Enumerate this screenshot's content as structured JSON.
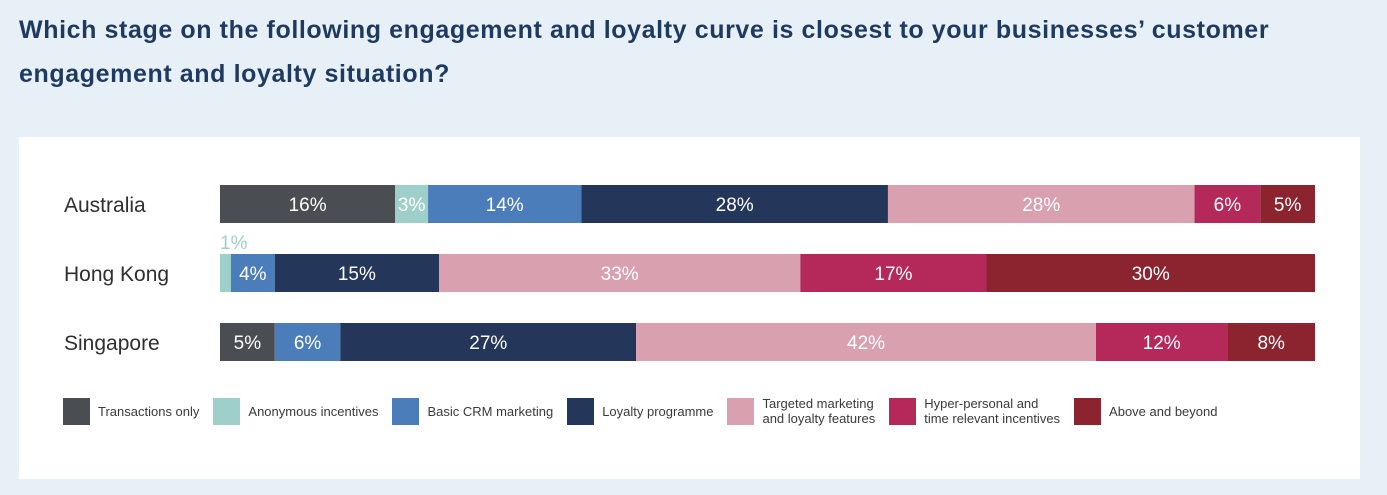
{
  "heading": "Which stage on the following engagement and loyalty curve is closest to your businesses’ customer engagement and loyalty situation?",
  "colors": {
    "transactions": "#4a4d51",
    "anonymous": "#9fcfca",
    "basic_crm": "#4a7db9",
    "loyalty": "#243659",
    "targeted": "#d9a0b0",
    "hyper": "#b5295a",
    "above": "#8c2430",
    "label_on_dark": "#ffffff",
    "label_outside": "#9fcfca",
    "country_text": "#2f2f2f",
    "heading_text": "#1f3a5f"
  },
  "legend": [
    {
      "key": "transactions",
      "label": "Transactions only"
    },
    {
      "key": "anonymous",
      "label": "Anonymous incentives"
    },
    {
      "key": "basic_crm",
      "label": "Basic CRM marketing"
    },
    {
      "key": "loyalty",
      "label": "Loyalty programme"
    },
    {
      "key": "targeted",
      "label": "Targeted marketing\nand loyalty features"
    },
    {
      "key": "hyper",
      "label": "Hyper-personal and\ntime relevant incentives"
    },
    {
      "key": "above",
      "label": "Above and beyond"
    }
  ],
  "chart_data": {
    "type": "bar",
    "orientation": "horizontal",
    "stacked": true,
    "unit": "%",
    "title": "",
    "categories": [
      "Australia",
      "Hong Kong",
      "Singapore"
    ],
    "series": [
      {
        "name": "Transactions only",
        "key": "transactions",
        "values": [
          16,
          0,
          5
        ]
      },
      {
        "name": "Anonymous incentives",
        "key": "anonymous",
        "values": [
          3,
          1,
          0
        ]
      },
      {
        "name": "Basic CRM marketing",
        "key": "basic_crm",
        "values": [
          14,
          4,
          6
        ]
      },
      {
        "name": "Loyalty programme",
        "key": "loyalty",
        "values": [
          28,
          15,
          27
        ]
      },
      {
        "name": "Targeted marketing and loyalty features",
        "key": "targeted",
        "values": [
          28,
          33,
          42
        ]
      },
      {
        "name": "Hyper-personal and time relevant incentives",
        "key": "hyper",
        "values": [
          6,
          17,
          12
        ]
      },
      {
        "name": "Above and beyond",
        "key": "above",
        "values": [
          5,
          30,
          8
        ]
      }
    ],
    "xlim": [
      0,
      100
    ],
    "legend_position": "bottom",
    "grid": false,
    "small_value_labels_outside": [
      {
        "category": "Hong Kong",
        "series": "Anonymous incentives"
      }
    ]
  }
}
